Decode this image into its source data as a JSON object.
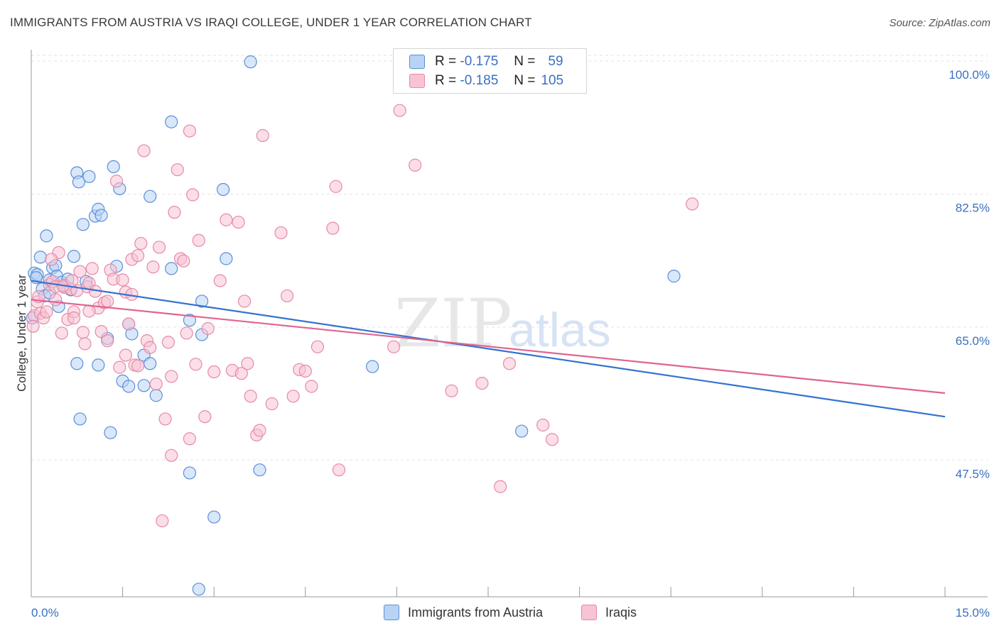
{
  "header": {
    "title": "IMMIGRANTS FROM AUSTRIA VS IRAQI COLLEGE, UNDER 1 YEAR CORRELATION CHART",
    "source": "Source: ZipAtlas.com"
  },
  "watermark": {
    "zip": "ZIP",
    "atlas": "atlas"
  },
  "legend": {
    "r_label": "R =",
    "n_label": "N =",
    "rows": [
      {
        "r": "-0.175",
        "n": "59"
      },
      {
        "r": "-0.185",
        "n": "105"
      }
    ]
  },
  "bottom_legend": [
    {
      "label": "Immigrants from Austria"
    },
    {
      "label": "Iraqis"
    }
  ],
  "colors": {
    "blue_fill": "#b9d3f5",
    "blue_stroke": "#5b8fd6",
    "blue_line": "#3472d0",
    "pink_fill": "#f8c3d3",
    "pink_stroke": "#e58aa8",
    "pink_line": "#e0638f",
    "tick_text": "#3b6fc0",
    "grid": "#e3e3e3"
  },
  "chart_data": {
    "type": "scatter",
    "xlabel": "",
    "ylabel": "College, Under 1 year",
    "xlim": [
      0,
      15
    ],
    "ylim": [
      29.5,
      101.5
    ],
    "x_tick_labels": [
      {
        "value": 0,
        "label": "0.0%"
      },
      {
        "value": 15,
        "label": "15.0%"
      }
    ],
    "y_tick_labels": [
      {
        "value": 47.5,
        "label": "47.5%"
      },
      {
        "value": 65.0,
        "label": "65.0%"
      },
      {
        "value": 82.5,
        "label": "82.5%"
      },
      {
        "value": 100.0,
        "label": "100.0%"
      }
    ],
    "grid": true,
    "series": [
      {
        "name": "Immigrants from Austria",
        "color": "blue",
        "trend": {
          "x": [
            0,
            15
          ],
          "y": [
            71.1,
            53.2
          ]
        },
        "points": [
          [
            0.05,
            72.1
          ],
          [
            0.1,
            71.9
          ],
          [
            0.08,
            71.5
          ],
          [
            0.15,
            74.2
          ],
          [
            0.18,
            70.0
          ],
          [
            0.22,
            69.1
          ],
          [
            0.25,
            77.0
          ],
          [
            0.3,
            71.2
          ],
          [
            0.35,
            72.8
          ],
          [
            0.4,
            73.1
          ],
          [
            0.42,
            71.7
          ],
          [
            0.45,
            67.7
          ],
          [
            0.5,
            70.9
          ],
          [
            0.55,
            70.5
          ],
          [
            0.6,
            71.3
          ],
          [
            0.65,
            69.9
          ],
          [
            0.7,
            74.3
          ],
          [
            0.75,
            85.3
          ],
          [
            0.78,
            84.1
          ],
          [
            0.85,
            78.5
          ],
          [
            0.9,
            71.0
          ],
          [
            0.95,
            84.8
          ],
          [
            1.05,
            79.6
          ],
          [
            1.1,
            80.5
          ],
          [
            1.15,
            79.7
          ],
          [
            1.25,
            63.5
          ],
          [
            1.35,
            86.1
          ],
          [
            1.4,
            73.0
          ],
          [
            1.45,
            83.2
          ],
          [
            1.6,
            65.4
          ],
          [
            1.65,
            64.1
          ],
          [
            1.85,
            61.3
          ],
          [
            1.95,
            60.2
          ],
          [
            2.05,
            56.0
          ],
          [
            2.3,
            72.7
          ],
          [
            2.8,
            68.4
          ],
          [
            3.15,
            83.1
          ],
          [
            3.2,
            74.0
          ],
          [
            3.6,
            99.9
          ],
          [
            2.3,
            92.0
          ],
          [
            1.95,
            82.2
          ],
          [
            2.8,
            64.0
          ],
          [
            2.6,
            65.9
          ],
          [
            1.5,
            57.9
          ],
          [
            1.6,
            57.2
          ],
          [
            1.85,
            57.3
          ],
          [
            0.8,
            52.9
          ],
          [
            1.3,
            51.1
          ],
          [
            0.75,
            60.2
          ],
          [
            1.1,
            60.0
          ],
          [
            3.75,
            46.2
          ],
          [
            2.6,
            45.8
          ],
          [
            3.0,
            40.0
          ],
          [
            2.75,
            30.5
          ],
          [
            5.6,
            59.8
          ],
          [
            8.05,
            51.3
          ],
          [
            10.55,
            71.7
          ],
          [
            0.02,
            66.2
          ],
          [
            0.3,
            69.5
          ]
        ]
      },
      {
        "name": "Iraqis",
        "color": "pink",
        "trend": {
          "x": [
            0,
            15
          ],
          "y": [
            68.6,
            56.3
          ]
        },
        "points": [
          [
            0.05,
            66.5
          ],
          [
            0.1,
            68.3
          ],
          [
            0.15,
            66.8
          ],
          [
            0.2,
            66.2
          ],
          [
            0.25,
            67.0
          ],
          [
            0.3,
            70.6
          ],
          [
            0.35,
            71.0
          ],
          [
            0.4,
            70.3
          ],
          [
            0.45,
            74.8
          ],
          [
            0.5,
            64.2
          ],
          [
            0.55,
            70.2
          ],
          [
            0.6,
            66.0
          ],
          [
            0.65,
            70.0
          ],
          [
            0.7,
            67.0
          ],
          [
            0.75,
            69.8
          ],
          [
            0.8,
            72.3
          ],
          [
            0.85,
            64.3
          ],
          [
            0.88,
            62.8
          ],
          [
            0.92,
            70.3
          ],
          [
            0.95,
            70.8
          ],
          [
            1.0,
            72.7
          ],
          [
            1.05,
            69.7
          ],
          [
            1.1,
            67.5
          ],
          [
            1.15,
            64.4
          ],
          [
            1.2,
            68.2
          ],
          [
            1.25,
            68.4
          ],
          [
            1.3,
            72.5
          ],
          [
            1.35,
            71.3
          ],
          [
            1.4,
            84.2
          ],
          [
            1.45,
            59.7
          ],
          [
            1.5,
            71.2
          ],
          [
            1.55,
            69.6
          ],
          [
            1.6,
            65.4
          ],
          [
            1.65,
            73.9
          ],
          [
            1.7,
            60.0
          ],
          [
            1.75,
            74.4
          ],
          [
            1.8,
            76.0
          ],
          [
            1.85,
            88.2
          ],
          [
            1.9,
            63.2
          ],
          [
            1.95,
            62.3
          ],
          [
            2.0,
            72.9
          ],
          [
            2.05,
            57.5
          ],
          [
            2.1,
            75.5
          ],
          [
            2.15,
            39.5
          ],
          [
            2.2,
            52.9
          ],
          [
            2.25,
            63.0
          ],
          [
            2.3,
            48.1
          ],
          [
            2.35,
            80.1
          ],
          [
            2.4,
            85.7
          ],
          [
            2.45,
            74.0
          ],
          [
            2.5,
            73.7
          ],
          [
            2.55,
            64.2
          ],
          [
            2.6,
            90.8
          ],
          [
            2.65,
            82.4
          ],
          [
            2.7,
            60.1
          ],
          [
            2.75,
            76.4
          ],
          [
            2.85,
            53.2
          ],
          [
            2.9,
            64.8
          ],
          [
            3.0,
            59.1
          ],
          [
            3.1,
            71.1
          ],
          [
            3.2,
            79.1
          ],
          [
            3.3,
            59.3
          ],
          [
            3.4,
            78.8
          ],
          [
            3.45,
            58.9
          ],
          [
            3.5,
            68.4
          ],
          [
            3.55,
            60.2
          ],
          [
            3.6,
            55.9
          ],
          [
            3.7,
            50.8
          ],
          [
            3.75,
            51.4
          ],
          [
            3.8,
            90.2
          ],
          [
            3.95,
            54.9
          ],
          [
            4.1,
            77.4
          ],
          [
            4.2,
            69.1
          ],
          [
            4.3,
            55.9
          ],
          [
            4.4,
            59.4
          ],
          [
            4.5,
            59.2
          ],
          [
            4.6,
            57.2
          ],
          [
            4.7,
            62.4
          ],
          [
            4.95,
            78.0
          ],
          [
            5.0,
            83.5
          ],
          [
            5.05,
            46.2
          ],
          [
            5.95,
            62.4
          ],
          [
            6.05,
            93.5
          ],
          [
            6.3,
            86.3
          ],
          [
            6.9,
            56.6
          ],
          [
            7.4,
            57.6
          ],
          [
            7.7,
            44.0
          ],
          [
            7.85,
            60.2
          ],
          [
            8.4,
            52.1
          ],
          [
            8.55,
            50.2
          ],
          [
            10.85,
            81.2
          ],
          [
            0.12,
            69.0
          ],
          [
            0.4,
            68.6
          ],
          [
            0.7,
            66.2
          ],
          [
            0.95,
            67.1
          ],
          [
            1.25,
            63.2
          ],
          [
            1.55,
            61.3
          ],
          [
            1.75,
            59.9
          ],
          [
            2.3,
            58.5
          ],
          [
            2.6,
            50.3
          ],
          [
            0.33,
            73.9
          ],
          [
            0.52,
            70.4
          ],
          [
            0.67,
            71.1
          ],
          [
            0.03,
            65.1
          ],
          [
            1.65,
            69.3
          ]
        ]
      }
    ]
  }
}
